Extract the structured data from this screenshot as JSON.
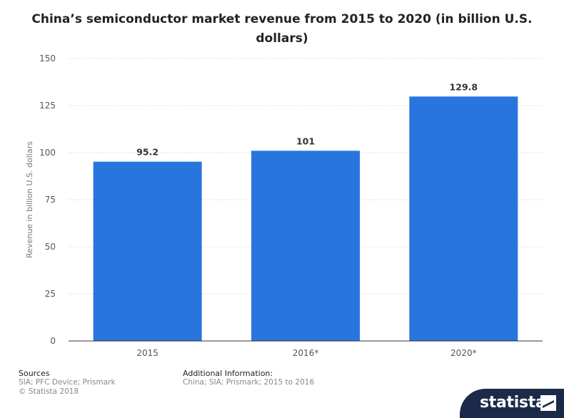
{
  "title": "China’s semiconductor market revenue from 2015 to 2020 (in billion U.S. dollars)",
  "chart_data": {
    "type": "bar",
    "categories": [
      "2015",
      "2016*",
      "2020*"
    ],
    "values": [
      95.2,
      101,
      129.8
    ],
    "value_labels": [
      "95.2",
      "101",
      "129.8"
    ],
    "xlabel": "",
    "ylabel": "Revenue in billion U.S. dollars",
    "ylim": [
      0,
      150
    ],
    "yticks": [
      0,
      25,
      50,
      75,
      100,
      125,
      150
    ],
    "grid": true,
    "bar_color": "#2876dd"
  },
  "footer": {
    "sources_heading": "Sources",
    "sources_line1": "SIA; PFC Device; Prismark",
    "copyright": "© Statista 2018",
    "additional_heading": "Additional Information:",
    "additional_text": "China; SIA; Prismark; 2015 to 2016"
  },
  "brand": {
    "name": "statista",
    "icon": "statista-logo-icon",
    "background": "#1b2a48"
  }
}
